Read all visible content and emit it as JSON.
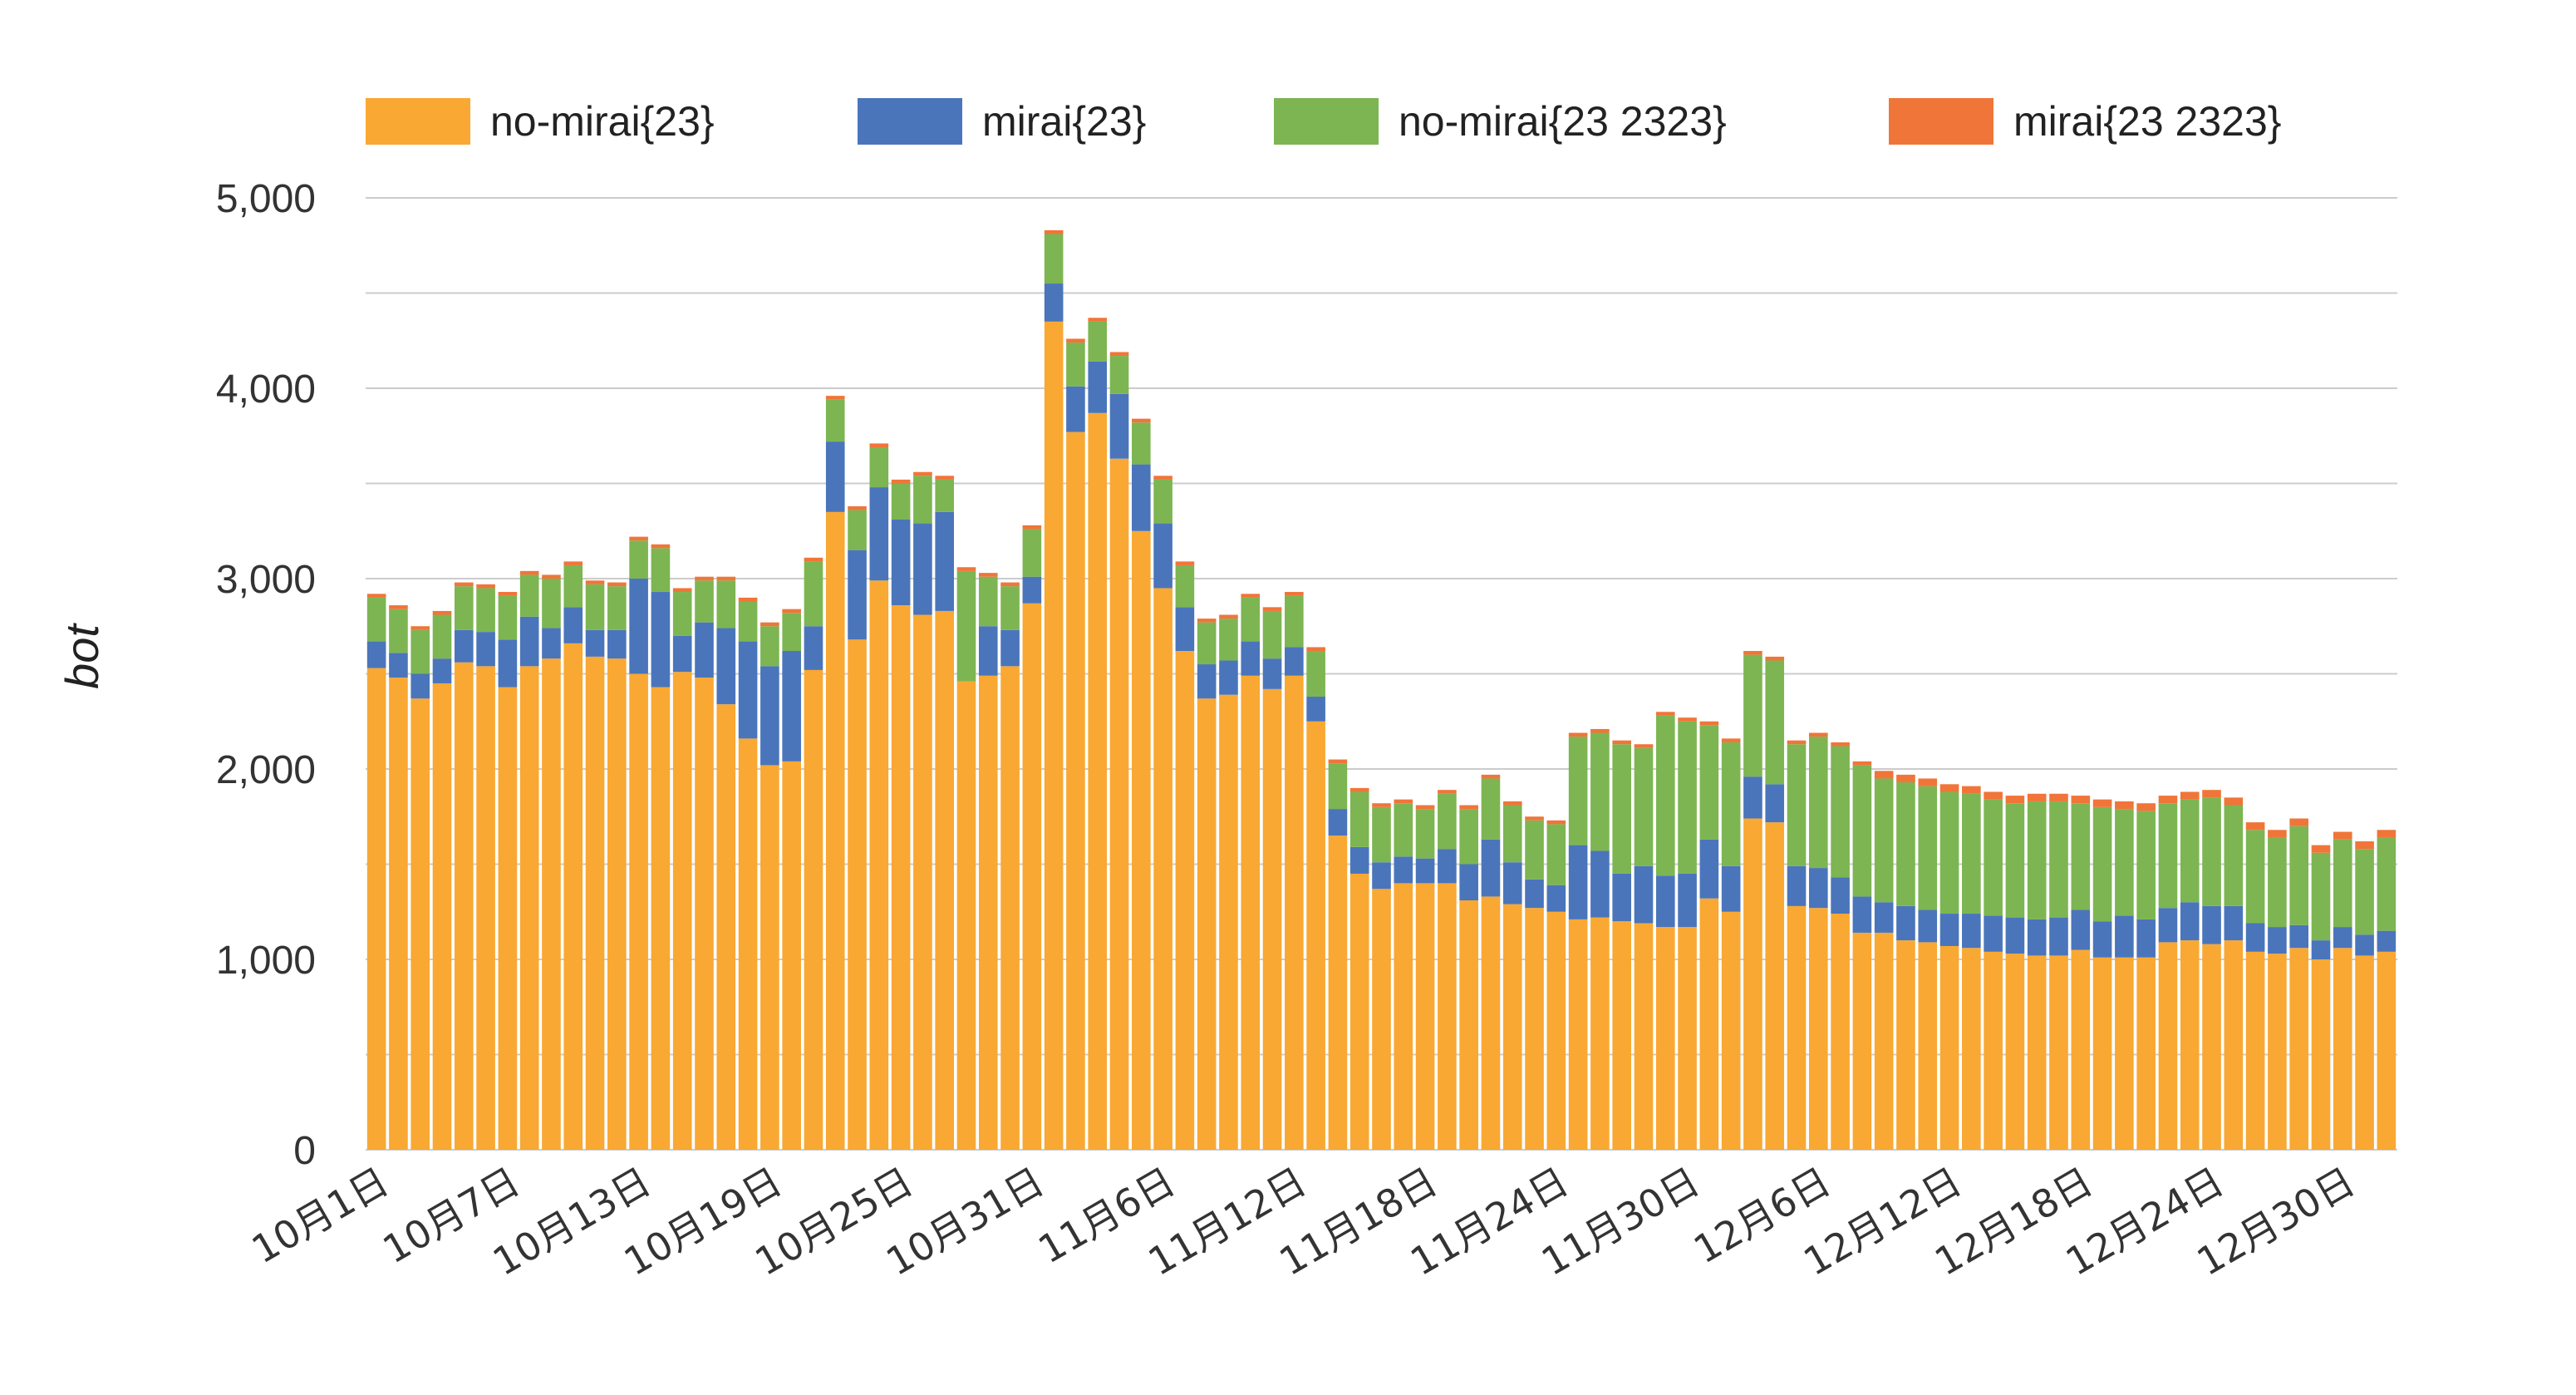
{
  "chart_data": {
    "type": "bar",
    "stacked": true,
    "title": "",
    "xlabel": "",
    "ylabel": "bot",
    "ylim": [
      0,
      5000
    ],
    "yticks": [
      0,
      1000,
      2000,
      3000,
      4000,
      5000
    ],
    "ytick_labels": [
      "0",
      "1,000",
      "2,000",
      "3,000",
      "4,000",
      "5,000"
    ],
    "grid": true,
    "legend_position": "top",
    "x_tick_labels": [
      "10月1日",
      "10月7日",
      "10月13日",
      "10月19日",
      "10月25日",
      "10月31日",
      "11月6日",
      "11月12日",
      "11月18日",
      "11月24日",
      "11月30日",
      "12月6日",
      "12月12日",
      "12月18日",
      "12月24日",
      "12月30日"
    ],
    "x_tick_every": 6,
    "series": [
      {
        "name": "no-mirai{23}",
        "color": "#F9A833",
        "values": [
          2530,
          2480,
          2370,
          2450,
          2560,
          2540,
          2430,
          2540,
          2580,
          2660,
          2590,
          2580,
          2500,
          2430,
          2510,
          2480,
          2340,
          2160,
          2020,
          2040,
          2520,
          3350,
          2680,
          2990,
          2860,
          2810,
          2830,
          2460,
          2490,
          2540,
          2870,
          4350,
          3770,
          3870,
          3630,
          3250,
          2950,
          2620,
          2370,
          2390,
          2490,
          2420,
          2490,
          2250,
          1650,
          1450,
          1370,
          1400,
          1400,
          1400,
          1310,
          1330,
          1290,
          1270,
          1250,
          1210,
          1220,
          1200,
          1190,
          1170,
          1170,
          1320,
          1250,
          1740,
          1720,
          1280,
          1270,
          1240,
          1140,
          1140,
          1100,
          1090,
          1070,
          1060,
          1040,
          1030,
          1020,
          1020,
          1050,
          1010,
          1010,
          1010,
          1090,
          1100,
          1080,
          1100,
          1040,
          1030,
          1060,
          1000,
          1060,
          1020,
          1040
        ]
      },
      {
        "name": "mirai{23}",
        "color": "#4A75BB",
        "values": [
          140,
          130,
          130,
          130,
          170,
          180,
          250,
          260,
          160,
          190,
          140,
          150,
          500,
          500,
          190,
          290,
          400,
          510,
          520,
          580,
          230,
          370,
          470,
          490,
          450,
          480,
          520,
          0,
          260,
          190,
          140,
          200,
          240,
          270,
          340,
          350,
          340,
          230,
          180,
          180,
          180,
          160,
          150,
          130,
          140,
          140,
          140,
          140,
          130,
          180,
          190,
          300,
          220,
          150,
          140,
          390,
          350,
          250,
          300,
          270,
          280,
          310,
          240,
          220,
          200,
          210,
          210,
          190,
          190,
          160,
          180,
          170,
          170,
          180,
          190,
          190,
          190,
          200,
          210,
          190,
          220,
          200,
          180,
          200,
          200,
          180,
          150,
          140,
          120,
          100,
          110,
          110,
          110
        ]
      },
      {
        "name": "no-mirai{23 2323}",
        "color": "#7DB552",
        "values": [
          230,
          230,
          230,
          230,
          230,
          230,
          230,
          220,
          260,
          220,
          240,
          230,
          200,
          230,
          230,
          220,
          250,
          210,
          210,
          200,
          340,
          220,
          210,
          210,
          190,
          250,
          170,
          580,
          260,
          230,
          250,
          260,
          230,
          210,
          200,
          220,
          230,
          220,
          220,
          220,
          230,
          250,
          270,
          240,
          240,
          290,
          290,
          280,
          260,
          290,
          290,
          320,
          300,
          310,
          320,
          570,
          620,
          680,
          620,
          840,
          800,
          600,
          650,
          640,
          650,
          640,
          690,
          690,
          690,
          650,
          650,
          650,
          640,
          630,
          610,
          600,
          620,
          610,
          560,
          600,
          560,
          570,
          550,
          540,
          570,
          530,
          490,
          470,
          520,
          460,
          460,
          450,
          490
        ]
      },
      {
        "name": "mirai{23 2323}",
        "color": "#F07539",
        "values": [
          20,
          20,
          20,
          20,
          20,
          20,
          20,
          20,
          20,
          20,
          20,
          20,
          20,
          20,
          20,
          20,
          20,
          20,
          20,
          20,
          20,
          20,
          20,
          20,
          20,
          20,
          20,
          20,
          20,
          20,
          20,
          20,
          20,
          20,
          20,
          20,
          20,
          20,
          20,
          20,
          20,
          20,
          20,
          20,
          20,
          20,
          20,
          20,
          20,
          20,
          20,
          20,
          20,
          20,
          20,
          20,
          20,
          20,
          20,
          20,
          20,
          20,
          20,
          20,
          20,
          20,
          20,
          20,
          20,
          40,
          40,
          40,
          40,
          40,
          40,
          40,
          40,
          40,
          40,
          40,
          40,
          40,
          40,
          40,
          40,
          40,
          40,
          40,
          40,
          40,
          40,
          40,
          40
        ]
      }
    ]
  }
}
